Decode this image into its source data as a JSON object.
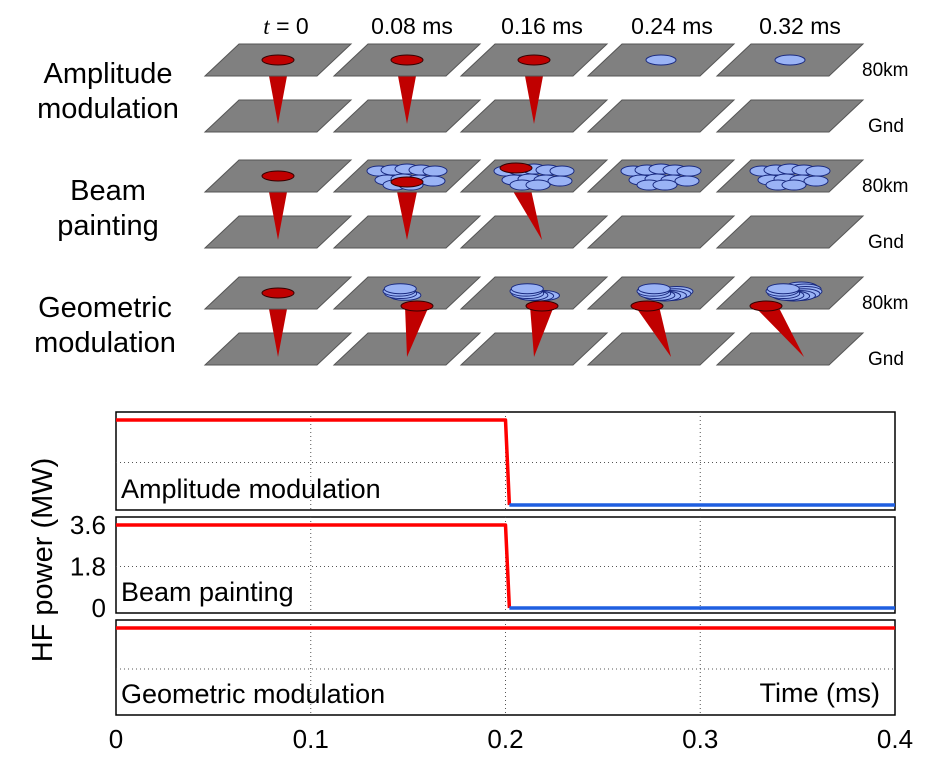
{
  "time_headers": [
    {
      "prefix": "t",
      "suffix": " = 0"
    },
    {
      "prefix": "",
      "suffix": "0.08 ms"
    },
    {
      "prefix": "",
      "suffix": "0.16 ms"
    },
    {
      "prefix": "",
      "suffix": "0.24 ms"
    },
    {
      "prefix": "",
      "suffix": "0.32 ms"
    }
  ],
  "level_labels": {
    "top": "80km",
    "bottom": "Gnd"
  },
  "modes": [
    {
      "line1": "Amplitude",
      "line2": "modulation",
      "spots": [
        "red",
        "red",
        "red",
        "blue",
        "blue"
      ]
    },
    {
      "line1": "Beam",
      "line2": "painting",
      "spots": [
        "red",
        "flower",
        "flower",
        "flower",
        "flower"
      ]
    },
    {
      "line1": "Geometric",
      "line2": "modulation",
      "spots": [
        "red",
        "arc",
        "arc",
        "arc",
        "arc"
      ]
    }
  ],
  "colors": {
    "plate": "#808080",
    "beam_red": "#c00000",
    "spot_blue": "#9ab3f5",
    "line_red": "#ff0000",
    "line_blue": "#1f5fe0"
  },
  "chart_data": {
    "type": "line",
    "ylabel": "HF power (MW)",
    "xlabel": "Time (ms)",
    "xlim": [
      0,
      0.4
    ],
    "ylim": [
      0,
      3.6
    ],
    "x_ticks": [
      "0",
      "0.1",
      "0.2",
      "0.3",
      "0.4"
    ],
    "y_ticks": [
      "0",
      "1.8",
      "3.6"
    ],
    "grid": "dotted",
    "panels": [
      {
        "label": "Amplitude modulation",
        "series": [
          {
            "color": "red",
            "x": [
              0,
              0.2,
              0.202
            ],
            "y": [
              3.6,
              3.6,
              0
            ]
          },
          {
            "color": "blue",
            "x": [
              0.202,
              0.4
            ],
            "y": [
              0,
              0
            ]
          }
        ]
      },
      {
        "label": "Beam painting",
        "series": [
          {
            "color": "red",
            "x": [
              0,
              0.2,
              0.202
            ],
            "y": [
              3.6,
              3.6,
              0
            ]
          },
          {
            "color": "blue",
            "x": [
              0.202,
              0.4
            ],
            "y": [
              0,
              0
            ]
          }
        ]
      },
      {
        "label": "Geometric modulation",
        "series": [
          {
            "color": "red",
            "x": [
              0,
              0.4
            ],
            "y": [
              3.6,
              3.6
            ]
          }
        ]
      }
    ]
  }
}
